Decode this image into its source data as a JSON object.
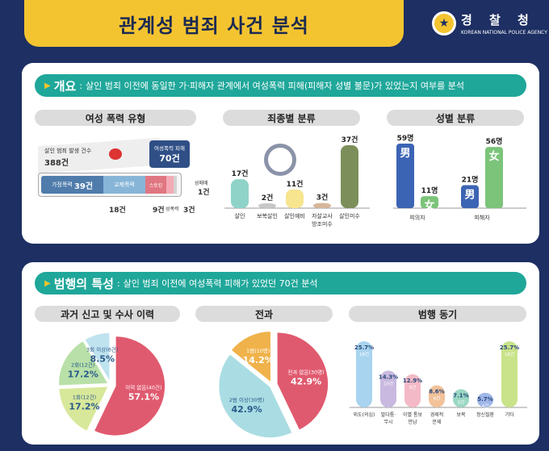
{
  "header": {
    "title": "관계성 범죄 사건 분석",
    "org_kr": "경 찰 청",
    "org_en": "KOREAN NATIONAL POLICE AGENCY"
  },
  "overview": {
    "heading": "개요",
    "desc": "살인 범죄 이전에 동일한 가·피해자 관계에서 여성폭력 피해(피해자 성별 불문)가 있었는지 여부를 분석",
    "violence_types": {
      "title": "여성 폭력 유형",
      "total_label": "살인 범죄 발생 건수",
      "total_value": "388건",
      "victim_label": "여성폭력 피해",
      "victim_value": "70건",
      "segments": [
        {
          "name": "가정폭력",
          "value": "39건"
        },
        {
          "name": "교제폭력",
          "value": "18건"
        },
        {
          "name": "스토킹",
          "value": "9건"
        },
        {
          "name": "성폭력",
          "value": "3건"
        },
        {
          "name": "성매매",
          "value": "1건"
        }
      ]
    },
    "final_charges": {
      "title": "죄종별 분류",
      "chart_data": {
        "type": "bar",
        "categories": [
          "살인",
          "보복살인",
          "살인예비",
          "자살교사 방조미수",
          "살인미수"
        ],
        "values": [
          17,
          2,
          11,
          3,
          37
        ],
        "value_labels": [
          "17건",
          "2건",
          "11건",
          "3건",
          "37건"
        ],
        "colors": [
          "#8fd3c8",
          "#c8c8c8",
          "#f7e58f",
          "#d7b79a",
          "#7c8f5a"
        ]
      }
    },
    "gender": {
      "title": "성별 분류",
      "chart_data": {
        "type": "bar",
        "categories": [
          "피의자",
          "피해자"
        ],
        "series": [
          {
            "name": "男",
            "values": [
              59,
              21
            ],
            "labels": [
              "59명",
              "21명"
            ],
            "color": "#3c64b4"
          },
          {
            "name": "女",
            "values": [
              11,
              56
            ],
            "labels": [
              "11명",
              "56명"
            ],
            "color": "#7cc47a"
          }
        ]
      }
    }
  },
  "features": {
    "heading": "범행의 특성",
    "desc": "살인 범죄 이전에 여성폭력 피해가 있었던 70건 분석",
    "history": {
      "title": "과거 신고 및 수사 이력",
      "chart_data": {
        "type": "pie",
        "labels": [
          "이력 없음",
          "1회",
          "2회",
          "3회 이상"
        ],
        "sublabels": [
          "(40건)",
          "(12건)",
          "(12건)",
          "(6건)"
        ],
        "values": [
          57.1,
          17.2,
          17.2,
          8.5
        ],
        "value_labels": [
          "57.1%",
          "17.2%",
          "17.2%",
          "8.5%"
        ],
        "colors": [
          "#e05a6f",
          "#d8e89a",
          "#b8e0a8",
          "#bfe3ef"
        ]
      }
    },
    "record": {
      "title": "전과",
      "chart_data": {
        "type": "pie",
        "labels": [
          "전과 없음",
          "2범 이상",
          "1범"
        ],
        "sublabels": [
          "(30명)",
          "(30명)",
          "(10명)"
        ],
        "values": [
          42.9,
          42.9,
          14.2
        ],
        "value_labels": [
          "42.9%",
          "42.9%",
          "14.2%"
        ],
        "colors": [
          "#e05a6f",
          "#a9dde3",
          "#f0b24a"
        ]
      }
    },
    "motive": {
      "title": "범행 동기",
      "chart_data": {
        "type": "bar",
        "categories": [
          "외도(의심)",
          "말다툼·무시",
          "이별 통보 만남 거부",
          "경제적 문제",
          "보복",
          "정신질환",
          "기타"
        ],
        "values": [
          25.7,
          14.3,
          12.9,
          8.6,
          7.1,
          5.7,
          25.7
        ],
        "value_labels": [
          "25.7%",
          "14.3%",
          "12.9%",
          "8.6%",
          "7.1%",
          "5.7%",
          "25.7%"
        ],
        "counts": [
          "18건",
          "10건",
          "9건",
          "6건",
          "5건",
          "4건",
          "18건"
        ],
        "colors": [
          "#a8d4ef",
          "#c9b9e0",
          "#f3b9c6",
          "#f2c29a",
          "#9bd8c4",
          "#9fb6e8",
          "#c9e38a"
        ]
      }
    }
  }
}
